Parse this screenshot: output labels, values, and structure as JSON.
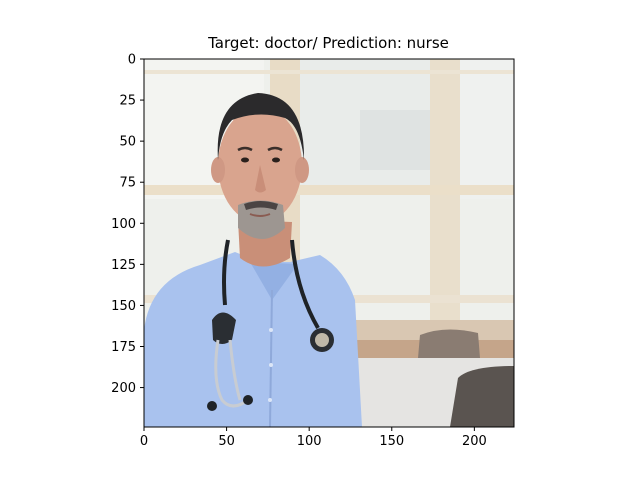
{
  "title": "Target: doctor/ Prediction: nurse",
  "axes": {
    "x_range": [
      0,
      224
    ],
    "y_range": [
      0,
      224
    ],
    "y_inverted": true,
    "x_ticks": [
      {
        "value": 0,
        "label": "0"
      },
      {
        "value": 50,
        "label": "50"
      },
      {
        "value": 100,
        "label": "100"
      },
      {
        "value": 150,
        "label": "150"
      },
      {
        "value": 200,
        "label": "200"
      }
    ],
    "y_ticks": [
      {
        "value": 0,
        "label": "0"
      },
      {
        "value": 25,
        "label": "25"
      },
      {
        "value": 50,
        "label": "50"
      },
      {
        "value": 75,
        "label": "75"
      },
      {
        "value": 100,
        "label": "100"
      },
      {
        "value": 125,
        "label": "125"
      },
      {
        "value": 150,
        "label": "150"
      },
      {
        "value": 175,
        "label": "175"
      },
      {
        "value": 200,
        "label": "200"
      }
    ]
  },
  "image": {
    "subject": "doctor-with-stethoscope",
    "colors": {
      "shirt": "#a9c2ee",
      "skin": "#d9a48e",
      "hair": "#2b2a2c",
      "window_bg": "#eef0ec",
      "window_frame": "#e8dcc6",
      "table": "#c5a58a",
      "chair": "#5a5450"
    }
  }
}
